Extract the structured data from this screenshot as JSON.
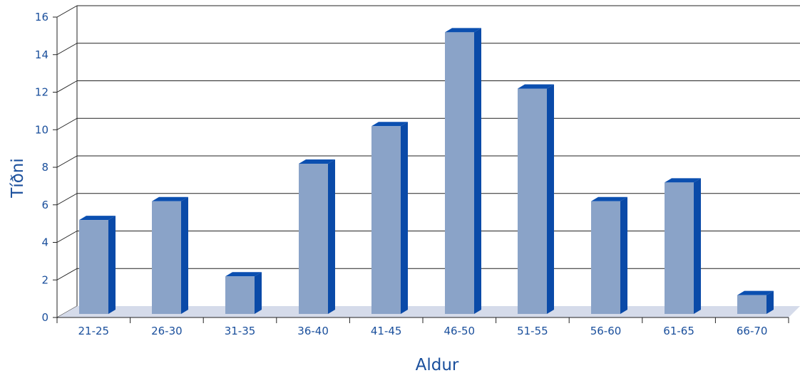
{
  "chart_data": {
    "type": "bar",
    "categories": [
      "21-25",
      "26-30",
      "31-35",
      "36-40",
      "41-45",
      "46-50",
      "51-55",
      "56-60",
      "61-65",
      "66-70"
    ],
    "values": [
      5,
      6,
      2,
      8,
      10,
      15,
      12,
      6,
      7,
      1
    ],
    "xlabel": "Aldur",
    "ylabel": "Tíðni",
    "ylim": [
      0,
      16
    ],
    "yticks": [
      0,
      2,
      4,
      6,
      8,
      10,
      12,
      14,
      16
    ],
    "grid": true,
    "style": "3d-column",
    "colors": {
      "bar_front": "#8aa3c8",
      "bar_side": "#0a4aa8",
      "bar_top": "#0b4fb0",
      "floor": "#d5dbea",
      "grid": "#222222",
      "text": "#1a4f9c"
    }
  }
}
